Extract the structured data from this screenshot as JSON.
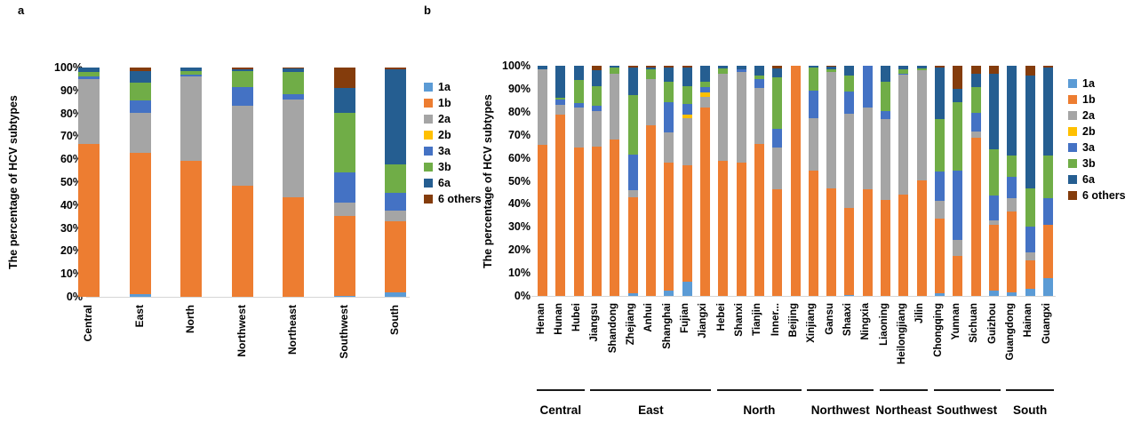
{
  "panels": {
    "a": {
      "letter": "a",
      "y_title": "The percentage of HCV subtypes"
    },
    "b": {
      "letter": "b",
      "y_title": "The percentage of HCV subtypes"
    }
  },
  "legend": {
    "items": [
      "1a",
      "1b",
      "2a",
      "2b",
      "3a",
      "3b",
      "6a",
      "6 others"
    ]
  },
  "colors": {
    "1a": "#5B9BD5",
    "1b": "#ED7D31",
    "2a": "#A5A5A5",
    "2b": "#FFC000",
    "3a": "#4472C4",
    "3b": "#70AD47",
    "6a": "#255E91",
    "6 others": "#843C0C"
  },
  "chart_data": [
    {
      "id": "a",
      "type": "bar",
      "stacked": true,
      "title": "",
      "xlabel": "",
      "ylabel": "The percentage of HCV subtypes",
      "ylim": [
        0,
        100
      ],
      "grid": false,
      "legend_position": "right",
      "yticks": [
        "0%",
        "10%",
        "20%",
        "30%",
        "40%",
        "50%",
        "60%",
        "70%",
        "80%",
        "90%",
        "100%"
      ],
      "categories": [
        "Central",
        "East",
        "North",
        "Northwest",
        "Northeast",
        "Southwest",
        "South"
      ],
      "series": [
        {
          "name": "1a",
          "values": [
            0,
            1.0,
            0,
            0,
            0,
            0.5,
            1.8
          ]
        },
        {
          "name": "1b",
          "values": [
            66.5,
            61.8,
            59.5,
            48.6,
            43.6,
            34.9,
            31.2
          ]
        },
        {
          "name": "2a",
          "values": [
            28.6,
            17.4,
            36.5,
            34.6,
            42.4,
            5.8,
            4.6
          ]
        },
        {
          "name": "2b",
          "values": [
            0,
            0,
            0,
            0,
            0,
            0,
            0
          ]
        },
        {
          "name": "3a",
          "values": [
            1.2,
            5.5,
            1.0,
            8.3,
            2.5,
            12.9,
            7.8
          ]
        },
        {
          "name": "3b",
          "values": [
            1.6,
            7.7,
            1.3,
            6.8,
            9.5,
            26.1,
            12.4
          ]
        },
        {
          "name": "6a",
          "values": [
            2.1,
            5.2,
            1.7,
            1.1,
            1.5,
            10.9,
            41.4
          ]
        },
        {
          "name": "6 others",
          "values": [
            0,
            1.4,
            0,
            0.6,
            0.5,
            8.9,
            0.8
          ]
        }
      ]
    },
    {
      "id": "b",
      "type": "bar",
      "stacked": true,
      "title": "",
      "xlabel": "",
      "ylabel": "The percentage of HCV subtypes",
      "ylim": [
        0,
        100
      ],
      "grid": false,
      "legend_position": "right",
      "yticks": [
        "0%",
        "10%",
        "20%",
        "30%",
        "40%",
        "50%",
        "60%",
        "70%",
        "80%",
        "90%",
        "100%"
      ],
      "categories": [
        "Henan",
        "Hunan",
        "Hubei",
        "Jiangsu",
        "Shandong",
        "Zhejiang",
        "Anhui",
        "Shanghai",
        "Fujian",
        "Jiangxi",
        "Hebei",
        "Shanxi",
        "Tianjin",
        "Inner...",
        "Beijing",
        "Xinjiang",
        "Gansu",
        "Shaaxi",
        "Ningxia",
        "Liaoning",
        "Heilongjiang",
        "Jilin",
        "Chongqing",
        "Yunnan",
        "Sichuan",
        "Guizhou",
        "Guangdong",
        "Hainan",
        "Guangxi"
      ],
      "series": [
        {
          "name": "1a",
          "values": [
            0,
            0,
            0,
            0,
            0,
            1.2,
            0,
            2.3,
            6.3,
            0,
            0,
            0,
            0,
            0,
            0,
            0,
            0,
            0.5,
            0,
            0,
            0,
            0,
            1.0,
            0,
            0,
            2.3,
            1.5,
            3.0,
            7.6
          ]
        },
        {
          "name": "1b",
          "values": [
            65.5,
            78.8,
            64.5,
            64.9,
            68.1,
            41.8,
            74.3,
            55.7,
            50.5,
            81.9,
            58.8,
            58.0,
            66.1,
            46.2,
            100,
            54.6,
            46.8,
            37.6,
            46.2,
            41.7,
            43.9,
            50.3,
            32.6,
            17.3,
            68.7,
            28.5,
            35.1,
            12.3,
            23.4
          ]
        },
        {
          "name": "2a",
          "values": [
            32.8,
            4.1,
            17.4,
            15.4,
            28.6,
            2.9,
            19.8,
            12.9,
            20.6,
            4.6,
            37.9,
            39.4,
            24.1,
            18.3,
            0,
            22.8,
            50.6,
            40.9,
            35.7,
            35.1,
            52.1,
            47.7,
            7.7,
            7.0,
            2.6,
            1.9,
            5.8,
            3.6,
            0
          ]
        },
        {
          "name": "2b",
          "values": [
            0,
            0,
            0,
            0,
            0,
            0,
            0,
            0,
            1.4,
            1.8,
            0,
            0,
            0,
            0,
            0,
            0,
            0,
            0,
            0,
            0,
            0,
            0,
            0,
            0,
            0,
            0,
            0,
            0,
            0
          ]
        },
        {
          "name": "3a",
          "values": [
            0,
            2.3,
            1.9,
            2.2,
            0,
            15.5,
            0,
            13.3,
            4.5,
            2.3,
            0,
            0.9,
            3.9,
            8.1,
            0,
            11.9,
            0,
            9.9,
            18.1,
            3.5,
            0.5,
            0,
            12.9,
            30.3,
            8.4,
            10.9,
            9.2,
            11.2,
            11.4
          ]
        },
        {
          "name": "3b",
          "values": [
            0,
            0.9,
            10.0,
            8.8,
            2.5,
            26.0,
            4.2,
            9.0,
            7.7,
            2.3,
            2.3,
            0,
            1.7,
            22.3,
            0,
            9.9,
            1.1,
            6.9,
            0,
            12.9,
            2.0,
            1.0,
            22.6,
            29.6,
            10.9,
            20.0,
            9.4,
            16.7,
            18.6
          ]
        },
        {
          "name": "6a",
          "values": [
            1.7,
            13.9,
            6.2,
            6.7,
            0.8,
            11.8,
            1.0,
            6.0,
            8.2,
            7.1,
            1.0,
            1.7,
            4.2,
            4.1,
            0,
            0.8,
            1.0,
            4.2,
            0,
            6.8,
            1.5,
            1.0,
            22.4,
            5.8,
            5.8,
            32.8,
            39.0,
            49.0,
            38.2
          ]
        },
        {
          "name": "6 others",
          "values": [
            0,
            0,
            0,
            2.0,
            0,
            0.8,
            0.7,
            0.8,
            0.8,
            0,
            0,
            0,
            0,
            1.0,
            0,
            0,
            0.5,
            0,
            0,
            0,
            0,
            0,
            0.8,
            10.0,
            3.6,
            3.6,
            0,
            4.2,
            0.8
          ]
        }
      ],
      "groups": [
        {
          "label": "Central",
          "from": 0,
          "to": 2
        },
        {
          "label": "East",
          "from": 3,
          "to": 9
        },
        {
          "label": "North",
          "from": 10,
          "to": 14
        },
        {
          "label": "Northwest",
          "from": 15,
          "to": 18
        },
        {
          "label": "Northeast",
          "from": 19,
          "to": 21
        },
        {
          "label": "Southwest",
          "from": 22,
          "to": 25
        },
        {
          "label": "South",
          "from": 26,
          "to": 28
        }
      ]
    }
  ]
}
